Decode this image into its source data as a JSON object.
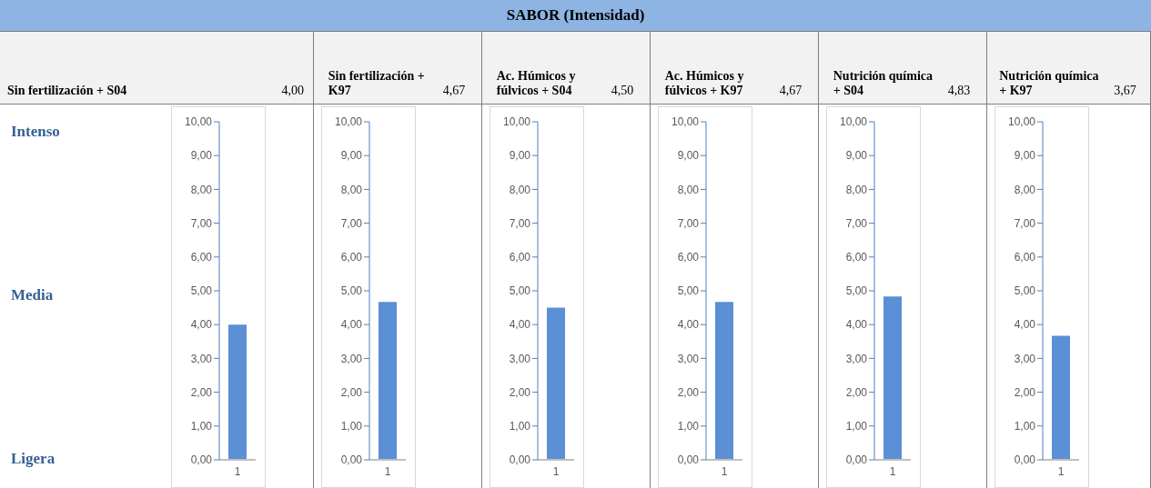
{
  "chart_data": [
    {
      "type": "bar",
      "title": "Sin fertilización + S04",
      "annotations": [
        "4,00",
        "SABOR (Intensidad)",
        "Intenso",
        "Media",
        "Ligera"
      ],
      "categories": [
        "1"
      ],
      "values": [
        4.0
      ],
      "color": "#5b8fd6",
      "ylim": [
        0,
        10
      ],
      "yticks": [
        {
          "value": 0,
          "label": "0,00"
        },
        {
          "value": 1,
          "label": "1,00"
        },
        {
          "value": 2,
          "label": "2,00"
        },
        {
          "value": 3,
          "label": "3,00"
        },
        {
          "value": 4,
          "label": "4,00"
        },
        {
          "value": 5,
          "label": "5,00"
        },
        {
          "value": 6,
          "label": "6,00"
        },
        {
          "value": 7,
          "label": "7,00"
        },
        {
          "value": 8,
          "label": "8,00"
        },
        {
          "value": 9,
          "label": "9,00"
        },
        {
          "value": 10,
          "label": "10,00"
        }
      ]
    },
    {
      "type": "bar",
      "title": "Sin fertilización + K97",
      "annotations": [
        "4,67"
      ],
      "categories": [
        "1"
      ],
      "values": [
        4.67
      ],
      "color": "#5b8fd6",
      "ylim": [
        0,
        10
      ],
      "yticks": [
        {
          "value": 0,
          "label": "0,00"
        },
        {
          "value": 1,
          "label": "1,00"
        },
        {
          "value": 2,
          "label": "2,00"
        },
        {
          "value": 3,
          "label": "3,00"
        },
        {
          "value": 4,
          "label": "4,00"
        },
        {
          "value": 5,
          "label": "5,00"
        },
        {
          "value": 6,
          "label": "6,00"
        },
        {
          "value": 7,
          "label": "7,00"
        },
        {
          "value": 8,
          "label": "8,00"
        },
        {
          "value": 9,
          "label": "9,00"
        },
        {
          "value": 10,
          "label": "10,00"
        }
      ]
    },
    {
      "type": "bar",
      "title": "Ac. Húmicos y fúlvicos + S04",
      "categories": [
        "1"
      ],
      "annotations": [
        "4,50"
      ],
      "values": [
        4.5
      ],
      "color": "#5b8fd6",
      "ylim": [
        0,
        10
      ],
      "yticks": [
        {
          "value": 0,
          "label": "0,00"
        },
        {
          "value": 1,
          "label": "1,00"
        },
        {
          "value": 2,
          "label": "2,00"
        },
        {
          "value": 3,
          "label": "3,00"
        },
        {
          "value": 4,
          "label": "4,00"
        },
        {
          "value": 5,
          "label": "5,00"
        },
        {
          "value": 6,
          "label": "6,00"
        },
        {
          "value": 7,
          "label": "7,00"
        },
        {
          "value": 8,
          "label": "8,00"
        },
        {
          "value": 9,
          "label": "9,00"
        },
        {
          "value": 10,
          "label": "10,00"
        }
      ]
    },
    {
      "type": "bar",
      "title": "Ac. Húmicos y fúlvicos + K97",
      "annotations": [
        "4,67"
      ],
      "categories": [
        "1"
      ],
      "values": [
        4.67
      ],
      "color": "#5b8fd6",
      "ylim": [
        0,
        10
      ],
      "yticks": [
        {
          "value": 0,
          "label": "0,00"
        },
        {
          "value": 1,
          "label": "1,00"
        },
        {
          "value": 2,
          "label": "2,00"
        },
        {
          "value": 3,
          "label": "3,00"
        },
        {
          "value": 4,
          "label": "4,00"
        },
        {
          "value": 5,
          "label": "5,00"
        },
        {
          "value": 6,
          "label": "6,00"
        },
        {
          "value": 7,
          "label": "7,00"
        },
        {
          "value": 8,
          "label": "8,00"
        },
        {
          "value": 9,
          "label": "9,00"
        },
        {
          "value": 10,
          "label": "10,00"
        }
      ]
    },
    {
      "type": "bar",
      "title": "Nutrición química + S04",
      "categories": [
        "1"
      ],
      "annotations": [
        "4,83"
      ],
      "values": [
        4.83
      ],
      "color": "#5b8fd6",
      "ylim": [
        0,
        10
      ],
      "yticks": [
        {
          "value": 0,
          "label": "0,00"
        },
        {
          "value": 1,
          "label": "1,00"
        },
        {
          "value": 2,
          "label": "2,00"
        },
        {
          "value": 3,
          "label": "3,00"
        },
        {
          "value": 4,
          "label": "4,00"
        },
        {
          "value": 5,
          "label": "5,00"
        },
        {
          "value": 6,
          "label": "6,00"
        },
        {
          "value": 7,
          "label": "7,00"
        },
        {
          "value": 8,
          "label": "8,00"
        },
        {
          "value": 9,
          "label": "9,00"
        },
        {
          "value": 10,
          "label": "10,00"
        }
      ]
    },
    {
      "type": "bar",
      "title": "Nutrición química + K97",
      "categories": [
        "1"
      ],
      "annotations": [
        "3,67"
      ],
      "values": [
        3.67
      ],
      "color": "#5b8fd6",
      "ylim": [
        0,
        10
      ],
      "yticks": [
        {
          "value": 0,
          "label": "0,00"
        },
        {
          "value": 1,
          "label": "1,00"
        },
        {
          "value": 2,
          "label": "2,00"
        },
        {
          "value": 3,
          "label": "3,00"
        },
        {
          "value": 4,
          "label": "4,00"
        },
        {
          "value": 5,
          "label": "5,00"
        },
        {
          "value": 6,
          "label": "6,00"
        },
        {
          "value": 7,
          "label": "7,00"
        },
        {
          "value": 8,
          "label": "8,00"
        },
        {
          "value": 9,
          "label": "9,00"
        },
        {
          "value": 10,
          "label": "10,00"
        }
      ]
    }
  ]
}
